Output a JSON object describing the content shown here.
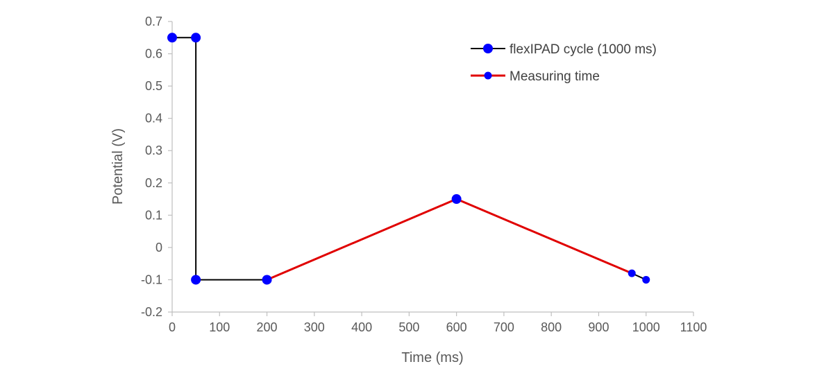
{
  "chart_data": {
    "type": "line",
    "xlabel": "Time  (ms)",
    "ylabel": "Potential (V)",
    "xlim": [
      0,
      1100
    ],
    "ylim": [
      -0.2,
      0.7
    ],
    "x_ticks": [
      0,
      100,
      200,
      300,
      400,
      500,
      600,
      700,
      800,
      900,
      1000,
      1100
    ],
    "y_ticks": [
      -0.2,
      -0.1,
      0,
      0.1,
      0.2,
      0.3,
      0.4,
      0.5,
      0.6,
      0.7
    ],
    "y_tick_labels": [
      "-0.2",
      "-0.1",
      "0",
      "0.1",
      "0.2",
      "0.3",
      "0.4",
      "0.5",
      "0.6",
      "0.7"
    ],
    "grid": false,
    "legend_position": "top-right",
    "series": [
      {
        "name": "flexIPAD cycle (1000 ms)",
        "color": "#000000",
        "marker_color": "#0000ff",
        "x": [
          0,
          50,
          50,
          200,
          970,
          1000
        ],
        "y": [
          0.65,
          0.65,
          -0.1,
          -0.1,
          -0.08,
          -0.1
        ],
        "segments": [
          [
            0,
            1
          ],
          [
            1,
            2
          ],
          [
            2,
            3
          ],
          [
            4,
            5
          ]
        ]
      },
      {
        "name": "Measuring time",
        "color": "#e00000",
        "marker_color": "#0000ff",
        "x": [
          200,
          600,
          970
        ],
        "y": [
          -0.1,
          0.15,
          -0.08
        ]
      }
    ]
  }
}
